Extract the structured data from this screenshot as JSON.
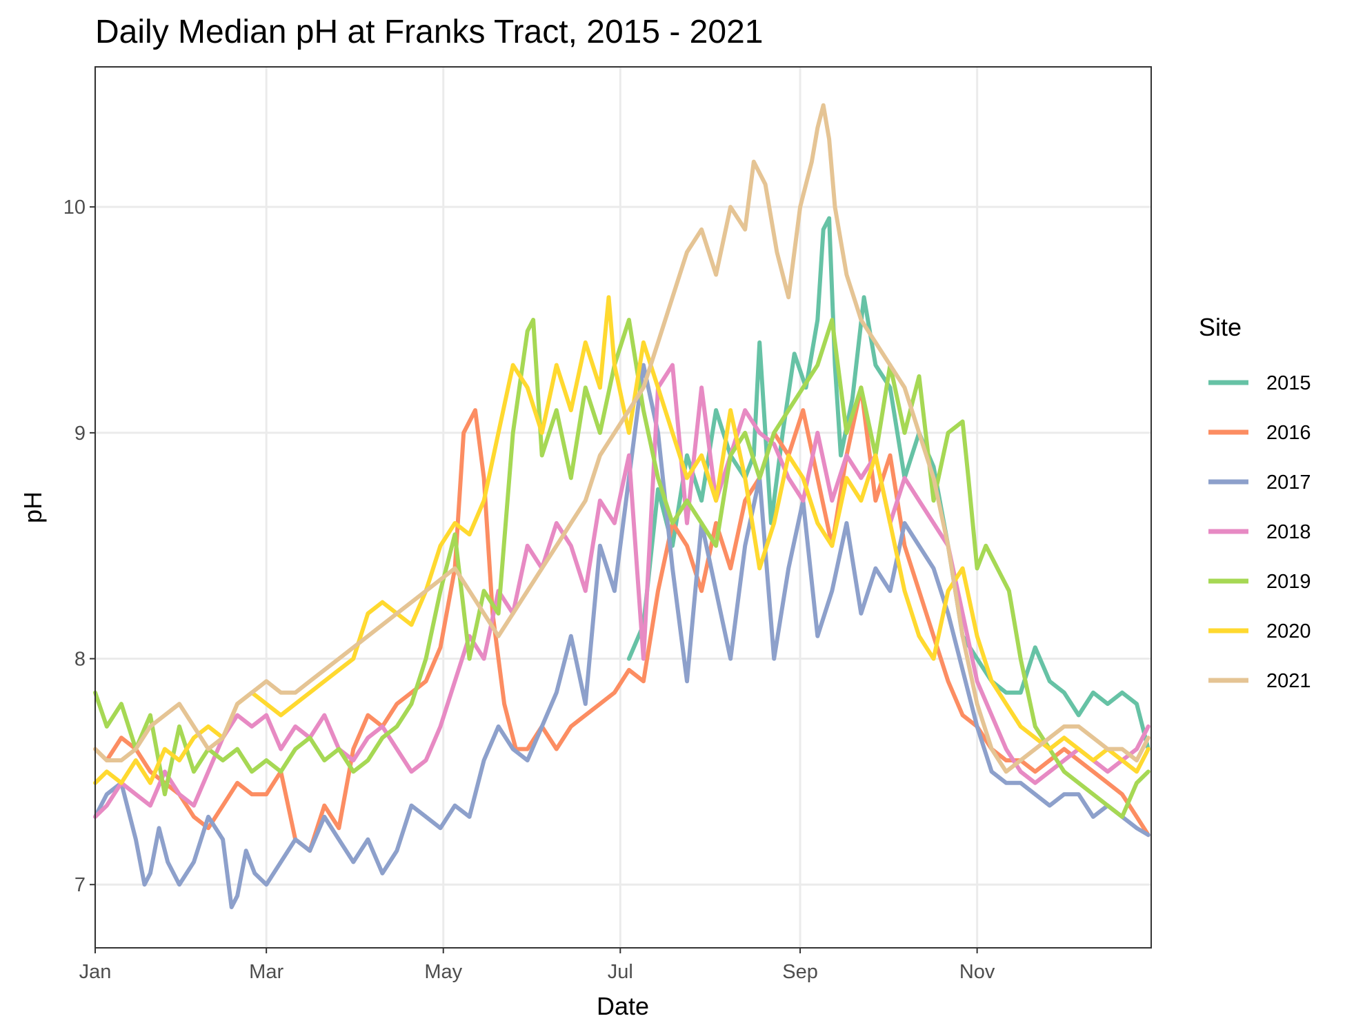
{
  "chart_data": {
    "type": "line",
    "title": "Daily Median pH at Franks Tract, 2015 - 2021",
    "xlabel": "Date",
    "ylabel": "pH",
    "x_unit": "day of year",
    "xlim": [
      1,
      365
    ],
    "ylim": [
      6.72,
      10.62
    ],
    "yticks": [
      7,
      8,
      9,
      10
    ],
    "ytick_labels": [
      "7",
      "8",
      "9",
      "10"
    ],
    "xticks": [
      {
        "day": 1,
        "label": "Jan"
      },
      {
        "day": 60,
        "label": "Mar"
      },
      {
        "day": 121,
        "label": "May"
      },
      {
        "day": 182,
        "label": "Jul"
      },
      {
        "day": 244,
        "label": "Sep"
      },
      {
        "day": 305,
        "label": "Nov"
      }
    ],
    "grid": true,
    "legend": {
      "title": "Site",
      "position": "right"
    },
    "series": [
      {
        "name": "2015",
        "color": "#66c2a5",
        "x": [
          185,
          190,
          195,
          200,
          205,
          210,
          215,
          220,
          225,
          228,
          230,
          234,
          238,
          242,
          246,
          250,
          252,
          254,
          256,
          258,
          262,
          266,
          270,
          275,
          280,
          285,
          290,
          295,
          300,
          305,
          310,
          315,
          320,
          325,
          330,
          335,
          340,
          345,
          350,
          355,
          360,
          364
        ],
        "y": [
          8.0,
          8.15,
          8.75,
          8.5,
          8.9,
          8.7,
          9.1,
          8.9,
          8.8,
          8.9,
          9.4,
          8.6,
          9.0,
          9.35,
          9.2,
          9.5,
          9.9,
          9.95,
          9.3,
          8.9,
          9.15,
          9.6,
          9.3,
          9.2,
          8.8,
          9.0,
          8.85,
          8.5,
          8.1,
          8.0,
          7.9,
          7.85,
          7.85,
          8.05,
          7.9,
          7.85,
          7.75,
          7.85,
          7.8,
          7.85,
          7.8,
          7.6
        ]
      },
      {
        "name": "2016",
        "color": "#fc8d62",
        "x": [
          1,
          5,
          10,
          15,
          20,
          25,
          30,
          35,
          40,
          45,
          50,
          55,
          60,
          65,
          70,
          75,
          80,
          85,
          90,
          95,
          100,
          105,
          110,
          115,
          120,
          125,
          128,
          132,
          135,
          138,
          142,
          146,
          150,
          155,
          160,
          165,
          170,
          175,
          180,
          185,
          190,
          195,
          200,
          205,
          210,
          215,
          220,
          225,
          230,
          235,
          240,
          245,
          250,
          255,
          260,
          265,
          270,
          275,
          280,
          285,
          290,
          295,
          300,
          305,
          310,
          315,
          320,
          325,
          330,
          335,
          340,
          345,
          350,
          355,
          360,
          364
        ],
        "y": [
          7.6,
          7.55,
          7.65,
          7.6,
          7.5,
          7.45,
          7.4,
          7.3,
          7.25,
          7.35,
          7.45,
          7.4,
          7.4,
          7.5,
          7.2,
          7.15,
          7.35,
          7.25,
          7.6,
          7.75,
          7.7,
          7.8,
          7.85,
          7.9,
          8.05,
          8.4,
          9.0,
          9.1,
          8.8,
          8.2,
          7.8,
          7.6,
          7.6,
          7.7,
          7.6,
          7.7,
          7.75,
          7.8,
          7.85,
          7.95,
          7.9,
          8.3,
          8.6,
          8.5,
          8.3,
          8.6,
          8.4,
          8.7,
          8.8,
          9.0,
          8.9,
          9.1,
          8.8,
          8.5,
          8.9,
          9.2,
          8.7,
          8.9,
          8.5,
          8.3,
          8.1,
          7.9,
          7.75,
          7.7,
          7.6,
          7.55,
          7.55,
          7.5,
          7.55,
          7.6,
          7.55,
          7.5,
          7.45,
          7.4,
          7.3,
          7.22
        ]
      },
      {
        "name": "2017",
        "color": "#8da0cb",
        "x": [
          1,
          5,
          10,
          15,
          18,
          20,
          23,
          26,
          30,
          35,
          40,
          45,
          48,
          50,
          53,
          56,
          60,
          65,
          70,
          75,
          80,
          85,
          90,
          95,
          100,
          105,
          110,
          115,
          120,
          125,
          130,
          135,
          140,
          145,
          150,
          155,
          160,
          165,
          170,
          175,
          180,
          185,
          190,
          195,
          200,
          205,
          210,
          215,
          220,
          225,
          230,
          235,
          240,
          245,
          250,
          255,
          260,
          265,
          270,
          275,
          280,
          285,
          290,
          295,
          300,
          305,
          310,
          315,
          320,
          325,
          330,
          335,
          340,
          345,
          350,
          355,
          360,
          364
        ],
        "y": [
          7.3,
          7.4,
          7.45,
          7.2,
          7.0,
          7.05,
          7.25,
          7.1,
          7.0,
          7.1,
          7.3,
          7.2,
          6.9,
          6.95,
          7.15,
          7.05,
          7.0,
          7.1,
          7.2,
          7.15,
          7.3,
          7.2,
          7.1,
          7.2,
          7.05,
          7.15,
          7.35,
          7.3,
          7.25,
          7.35,
          7.3,
          7.55,
          7.7,
          7.6,
          7.55,
          7.7,
          7.85,
          8.1,
          7.8,
          8.5,
          8.3,
          8.8,
          9.3,
          9.0,
          8.4,
          7.9,
          8.6,
          8.3,
          8.0,
          8.5,
          8.8,
          8.0,
          8.4,
          8.7,
          8.1,
          8.3,
          8.6,
          8.2,
          8.4,
          8.3,
          8.6,
          8.5,
          8.4,
          8.2,
          7.95,
          7.7,
          7.5,
          7.45,
          7.45,
          7.4,
          7.35,
          7.4,
          7.4,
          7.3,
          7.35,
          7.3,
          7.25,
          7.22
        ]
      },
      {
        "name": "2018",
        "color": "#e78ac3",
        "x": [
          1,
          5,
          10,
          15,
          20,
          25,
          30,
          35,
          40,
          45,
          50,
          55,
          60,
          65,
          70,
          75,
          80,
          85,
          90,
          95,
          100,
          105,
          110,
          115,
          120,
          125,
          130,
          135,
          140,
          145,
          150,
          155,
          160,
          165,
          170,
          175,
          180,
          185,
          190,
          195,
          200,
          205,
          210,
          215,
          220,
          225,
          230,
          235,
          240,
          245,
          250,
          255,
          260,
          265,
          270,
          275,
          280,
          285,
          290,
          295,
          300,
          305,
          310,
          315,
          320,
          325,
          330,
          335,
          340,
          345,
          350,
          355,
          360,
          364
        ],
        "y": [
          7.3,
          7.35,
          7.45,
          7.4,
          7.35,
          7.5,
          7.4,
          7.35,
          7.5,
          7.65,
          7.75,
          7.7,
          7.75,
          7.6,
          7.7,
          7.65,
          7.75,
          7.6,
          7.55,
          7.65,
          7.7,
          7.6,
          7.5,
          7.55,
          7.7,
          7.9,
          8.1,
          8.0,
          8.3,
          8.2,
          8.5,
          8.4,
          8.6,
          8.5,
          8.3,
          8.7,
          8.6,
          8.9,
          8.0,
          9.2,
          9.3,
          8.6,
          9.2,
          8.7,
          8.9,
          9.1,
          9.0,
          8.95,
          8.8,
          8.7,
          9.0,
          8.7,
          8.9,
          8.8,
          8.9,
          8.6,
          8.8,
          8.7,
          8.6,
          8.5,
          8.2,
          7.9,
          7.75,
          7.6,
          7.5,
          7.45,
          7.5,
          7.55,
          7.6,
          7.55,
          7.5,
          7.55,
          7.6,
          7.7
        ]
      },
      {
        "name": "2019",
        "color": "#a6d854",
        "x": [
          1,
          5,
          10,
          15,
          20,
          25,
          30,
          35,
          40,
          45,
          50,
          55,
          60,
          65,
          70,
          75,
          80,
          85,
          90,
          95,
          100,
          105,
          110,
          115,
          120,
          125,
          130,
          135,
          140,
          145,
          150,
          152,
          155,
          160,
          165,
          170,
          175,
          180,
          185,
          190,
          195,
          200,
          205,
          210,
          215,
          220,
          225,
          230,
          235,
          240,
          245,
          250,
          255,
          260,
          265,
          270,
          275,
          280,
          285,
          290,
          295,
          300,
          302,
          305,
          308,
          312,
          316,
          320,
          325,
          330,
          335,
          340,
          345,
          350,
          355,
          360,
          364
        ],
        "y": [
          7.85,
          7.7,
          7.8,
          7.6,
          7.75,
          7.4,
          7.7,
          7.5,
          7.6,
          7.55,
          7.6,
          7.5,
          7.55,
          7.5,
          7.6,
          7.65,
          7.55,
          7.6,
          7.5,
          7.55,
          7.65,
          7.7,
          7.8,
          8.0,
          8.3,
          8.55,
          8.0,
          8.3,
          8.2,
          9.0,
          9.45,
          9.5,
          8.9,
          9.1,
          8.8,
          9.2,
          9.0,
          9.3,
          9.5,
          9.1,
          8.8,
          8.6,
          8.7,
          8.6,
          8.5,
          8.9,
          9.0,
          8.8,
          9.0,
          9.1,
          9.2,
          9.3,
          9.5,
          9.0,
          9.2,
          8.9,
          9.3,
          9.0,
          9.25,
          8.7,
          9.0,
          9.05,
          8.8,
          8.4,
          8.5,
          8.4,
          8.3,
          8.0,
          7.7,
          7.6,
          7.5,
          7.45,
          7.4,
          7.35,
          7.3,
          7.45,
          7.5
        ]
      },
      {
        "name": "2020",
        "color": "#ffd92f",
        "x": [
          1,
          5,
          10,
          15,
          20,
          25,
          30,
          35,
          40,
          45,
          50,
          55,
          60,
          65,
          70,
          75,
          80,
          85,
          90,
          95,
          100,
          105,
          110,
          115,
          120,
          125,
          130,
          135,
          140,
          145,
          150,
          155,
          160,
          165,
          170,
          175,
          178,
          180,
          185,
          190,
          195,
          200,
          205,
          210,
          215,
          220,
          225,
          230,
          235,
          240,
          245,
          250,
          255,
          260,
          265,
          270,
          275,
          280,
          285,
          290,
          295,
          300,
          305,
          310,
          315,
          320,
          325,
          330,
          335,
          340,
          345,
          350,
          355,
          360,
          364
        ],
        "y": [
          7.45,
          7.5,
          7.45,
          7.55,
          7.45,
          7.6,
          7.55,
          7.65,
          7.7,
          7.65,
          7.8,
          7.85,
          7.8,
          7.75,
          7.8,
          7.85,
          7.9,
          7.95,
          8.0,
          8.2,
          8.25,
          8.2,
          8.15,
          8.3,
          8.5,
          8.6,
          8.55,
          8.7,
          9.0,
          9.3,
          9.2,
          9.0,
          9.3,
          9.1,
          9.4,
          9.2,
          9.6,
          9.3,
          9.0,
          9.4,
          9.2,
          9.0,
          8.8,
          8.9,
          8.7,
          9.1,
          8.8,
          8.4,
          8.6,
          8.9,
          8.8,
          8.6,
          8.5,
          8.8,
          8.7,
          8.9,
          8.6,
          8.3,
          8.1,
          8.0,
          8.3,
          8.4,
          8.1,
          7.9,
          7.8,
          7.7,
          7.65,
          7.6,
          7.65,
          7.6,
          7.55,
          7.6,
          7.55,
          7.5,
          7.6
        ]
      },
      {
        "name": "2021",
        "color": "#e5c494",
        "x": [
          1,
          5,
          10,
          15,
          20,
          25,
          30,
          35,
          40,
          45,
          50,
          55,
          60,
          65,
          70,
          75,
          80,
          85,
          90,
          95,
          100,
          105,
          110,
          115,
          120,
          125,
          130,
          135,
          140,
          145,
          150,
          155,
          160,
          165,
          170,
          175,
          180,
          185,
          190,
          195,
          200,
          205,
          210,
          215,
          220,
          225,
          228,
          232,
          236,
          240,
          244,
          248,
          250,
          252,
          254,
          256,
          260,
          265,
          270,
          275,
          280,
          285,
          290,
          295,
          300,
          305,
          310,
          315,
          320,
          325,
          330,
          335,
          340,
          345,
          350,
          355,
          360,
          364
        ],
        "y": [
          7.6,
          7.55,
          7.55,
          7.6,
          7.7,
          7.75,
          7.8,
          7.7,
          7.6,
          7.65,
          7.8,
          7.85,
          7.9,
          7.85,
          7.85,
          7.9,
          7.95,
          8.0,
          8.05,
          8.1,
          8.15,
          8.2,
          8.25,
          8.3,
          8.35,
          8.4,
          8.3,
          8.2,
          8.1,
          8.2,
          8.3,
          8.4,
          8.5,
          8.6,
          8.7,
          8.9,
          9.0,
          9.1,
          9.2,
          9.4,
          9.6,
          9.8,
          9.9,
          9.7,
          10.0,
          9.9,
          10.2,
          10.1,
          9.8,
          9.6,
          10.0,
          10.2,
          10.35,
          10.45,
          10.3,
          10.0,
          9.7,
          9.5,
          9.4,
          9.3,
          9.2,
          9.0,
          8.8,
          8.5,
          8.1,
          7.8,
          7.6,
          7.5,
          7.55,
          7.6,
          7.65,
          7.7,
          7.7,
          7.65,
          7.6,
          7.6,
          7.55,
          7.65
        ]
      }
    ]
  }
}
